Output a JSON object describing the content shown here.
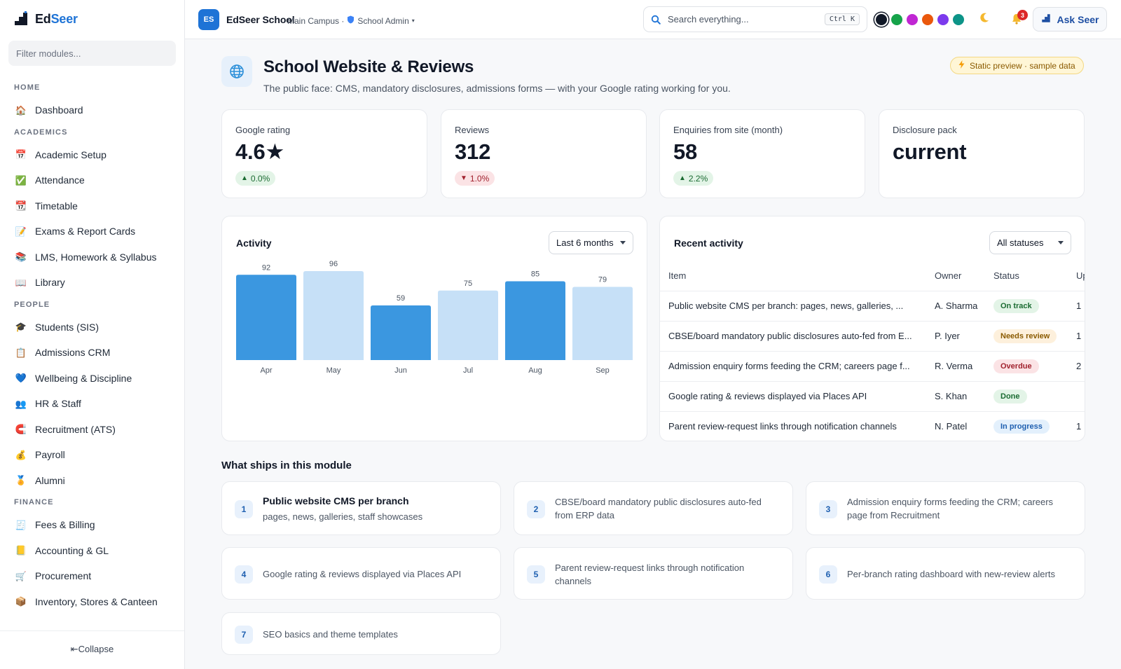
{
  "app": {
    "brand_prefix": "Ed",
    "brand_suffix": "Seer",
    "filter_placeholder": "Filter modules...",
    "collapse_label": "⇤Collapse"
  },
  "sidebar": {
    "sections": [
      {
        "title": "HOME",
        "items": [
          {
            "label": "Dashboard",
            "icon": "house-icon"
          }
        ]
      },
      {
        "title": "ACADEMICS",
        "items": [
          {
            "label": "Academic Setup",
            "icon": "calendar-icon"
          },
          {
            "label": "Attendance",
            "icon": "checkbox-icon"
          },
          {
            "label": "Timetable",
            "icon": "calendar-grid-icon"
          },
          {
            "label": "Exams & Report Cards",
            "icon": "memo-icon"
          },
          {
            "label": "LMS, Homework & Syllabus",
            "icon": "books-icon"
          },
          {
            "label": "Library",
            "icon": "open-book-icon"
          }
        ]
      },
      {
        "title": "PEOPLE",
        "items": [
          {
            "label": "Students (SIS)",
            "icon": "graduation-cap-icon"
          },
          {
            "label": "Admissions CRM",
            "icon": "clipboard-icon"
          },
          {
            "label": "Wellbeing & Discipline",
            "icon": "heart-icon"
          },
          {
            "label": "HR & Staff",
            "icon": "people-icon"
          },
          {
            "label": "Recruitment (ATS)",
            "icon": "magnet-icon"
          },
          {
            "label": "Payroll",
            "icon": "money-bag-icon"
          },
          {
            "label": "Alumni",
            "icon": "medal-icon"
          }
        ]
      },
      {
        "title": "FINANCE",
        "items": [
          {
            "label": "Fees & Billing",
            "icon": "receipt-icon"
          },
          {
            "label": "Accounting & GL",
            "icon": "ledger-icon"
          },
          {
            "label": "Procurement",
            "icon": "cart-icon"
          },
          {
            "label": "Inventory, Stores & Canteen",
            "icon": "package-icon"
          }
        ]
      }
    ]
  },
  "topbar": {
    "org_initials": "ES",
    "org_name": "EdSeer School",
    "org_campus": "Main Campus ·",
    "org_role": "School Admin",
    "org_role_caret": "▾",
    "search_placeholder": "Search everything...",
    "search_shortcut": "Ctrl K",
    "theme_colors": [
      "#111827",
      "#16a34a",
      "#c026d3",
      "#ea580c",
      "#7c3aed",
      "#0d9488"
    ],
    "notification_count": "3",
    "ask_label": "Ask Seer"
  },
  "page": {
    "title": "School Website & Reviews",
    "subtitle": "The public face: CMS, mandatory disclosures, admissions forms — with your Google rating working for you.",
    "badge": "Static preview · sample data"
  },
  "kpis": [
    {
      "label": "Google rating",
      "value": "4.6★",
      "trend": "0.0%",
      "direction": "up"
    },
    {
      "label": "Reviews",
      "value": "312",
      "trend": "1.0%",
      "direction": "down"
    },
    {
      "label": "Enquiries from site (month)",
      "value": "58",
      "trend": "2.2%",
      "direction": "up"
    },
    {
      "label": "Disclosure pack",
      "value": "current",
      "trend": "",
      "direction": ""
    }
  ],
  "activity": {
    "title": "Activity",
    "range": "Last 6 months"
  },
  "chart_data": {
    "type": "bar",
    "categories": [
      "Apr",
      "May",
      "Jun",
      "Jul",
      "Aug",
      "Sep"
    ],
    "values": [
      92,
      96,
      59,
      75,
      85,
      79
    ],
    "bar_colors": [
      "#3b97e0",
      "#c6e0f7",
      "#3b97e0",
      "#c6e0f7",
      "#3b97e0",
      "#c6e0f7"
    ],
    "title": "Activity",
    "xlabel": "",
    "ylabel": "",
    "ylim": [
      0,
      96
    ],
    "grid": false
  },
  "recent": {
    "title": "Recent activity",
    "filter": "All statuses",
    "columns": [
      "Item",
      "Owner",
      "Status",
      "Up"
    ],
    "rows": [
      {
        "item": "Public website CMS per branch: pages, news, galleries, ...",
        "owner": "A. Sharma",
        "status": "On track",
        "cls": "st-ontrack",
        "up": "1"
      },
      {
        "item": "CBSE/board mandatory public disclosures auto-fed from E...",
        "owner": "P. Iyer",
        "status": "Needs review",
        "cls": "st-review",
        "up": "1"
      },
      {
        "item": "Admission enquiry forms feeding the CRM; careers page f...",
        "owner": "R. Verma",
        "status": "Overdue",
        "cls": "st-overdue",
        "up": "2"
      },
      {
        "item": "Google rating & reviews displayed via Places API",
        "owner": "S. Khan",
        "status": "Done",
        "cls": "st-done",
        "up": ""
      },
      {
        "item": "Parent review-request links through notification channels",
        "owner": "N. Patel",
        "status": "In progress",
        "cls": "st-progress",
        "up": "1"
      }
    ]
  },
  "features": {
    "heading": "What ships in this module",
    "items": [
      {
        "num": "1",
        "title": "Public website CMS per branch",
        "text": "pages, news, galleries, staff showcases"
      },
      {
        "num": "2",
        "title": "",
        "text": "CBSE/board mandatory public disclosures auto-fed from ERP data"
      },
      {
        "num": "3",
        "title": "",
        "text": "Admission enquiry forms feeding the CRM; careers page from Recruitment"
      },
      {
        "num": "4",
        "title": "",
        "text": "Google rating & reviews displayed via Places API"
      },
      {
        "num": "5",
        "title": "",
        "text": "Parent review-request links through notification channels"
      },
      {
        "num": "6",
        "title": "",
        "text": "Per-branch rating dashboard with new-review alerts"
      },
      {
        "num": "7",
        "title": "",
        "text": "SEO basics and theme templates"
      }
    ]
  }
}
